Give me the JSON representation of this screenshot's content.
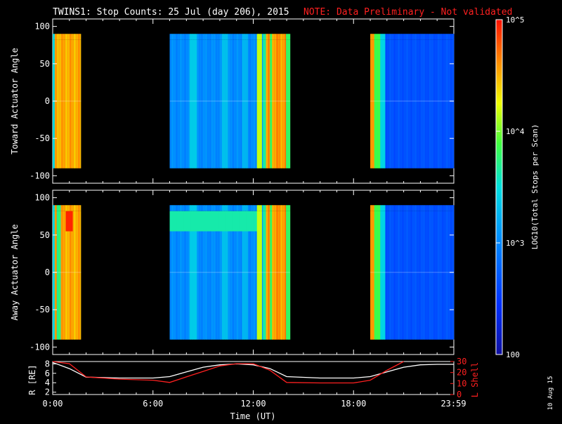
{
  "header": {
    "title": "TWINS1: Stop Counts: 25 Jul (day 206), 2015",
    "note": "NOTE: Data Preliminary - Not validated"
  },
  "footer": {
    "stamp": "10 Aug 15"
  },
  "colorbar": {
    "label": "LOG10(Total Stops per Scan)",
    "ticks": [
      {
        "value": 100,
        "label": "100"
      },
      {
        "value": 1000,
        "label": "10^3"
      },
      {
        "value": 10000,
        "label": "10^4"
      },
      {
        "value": 100000,
        "label": "10^5"
      }
    ],
    "range": [
      100,
      100000
    ],
    "scale": "log"
  },
  "colors": {
    "background": "#000000",
    "note": "#ff2020",
    "r_line": "#ffffff",
    "lshell_line": "#ff2020"
  },
  "chart_data": [
    {
      "type": "heatmap",
      "ylabel": "Toward Actuator Angle",
      "ylim": [
        -110,
        110
      ],
      "yticks": [
        100,
        50,
        0,
        -50,
        -100
      ],
      "ytick_labels": [
        "100",
        "50",
        "0",
        "-50",
        "-100"
      ],
      "xlim": [
        0,
        24
      ],
      "data_segments": [
        {
          "start": 0.0,
          "end": 1.7
        },
        {
          "start": 7.0,
          "end": 14.2
        },
        {
          "start": 19.0,
          "end": 24.0
        }
      ],
      "angle_range": [
        -90,
        90
      ]
    },
    {
      "type": "heatmap",
      "ylabel": "Away Actuator Angle",
      "ylim": [
        -110,
        110
      ],
      "yticks": [
        100,
        50,
        0,
        -50,
        -100
      ],
      "ytick_labels": [
        "100",
        "50",
        "0",
        "-50",
        "-100"
      ],
      "xlim": [
        0,
        24
      ],
      "data_segments": [
        {
          "start": 0.0,
          "end": 1.7
        },
        {
          "start": 7.0,
          "end": 14.2
        },
        {
          "start": 19.0,
          "end": 24.0
        }
      ],
      "angle_range": [
        -90,
        90
      ]
    },
    {
      "type": "line",
      "xlabel": "Time (UT)",
      "ylabel_left": "R [RE]",
      "ylabel_right": "L Shell",
      "xlim": [
        0,
        24
      ],
      "ylim_left": [
        1.5,
        8.5
      ],
      "ylim_right": [
        0,
        30
      ],
      "yticks_left": [
        2,
        4,
        6,
        8
      ],
      "yticks_right": [
        0,
        10,
        20,
        30
      ],
      "xticks": [
        0,
        6,
        12,
        18,
        23.98
      ],
      "xtick_labels": [
        "0:00",
        "6:00",
        "12:00",
        "18:00",
        "23:59"
      ],
      "series": [
        {
          "axis": "left",
          "x": [
            0,
            1,
            2,
            4,
            6,
            7,
            8,
            9,
            10,
            11,
            12,
            13,
            14,
            16,
            18,
            19,
            20,
            21,
            22,
            23,
            24
          ],
          "values": [
            8.3,
            7.0,
            5.2,
            5.0,
            5.0,
            5.3,
            6.3,
            7.3,
            7.8,
            8.0,
            7.8,
            7.0,
            5.3,
            5.0,
            5.0,
            5.3,
            6.3,
            7.3,
            7.8,
            7.9,
            7.9
          ]
        },
        {
          "axis": "right",
          "x": [
            0,
            1,
            2,
            4,
            6,
            7,
            8,
            9,
            10,
            11,
            12,
            13,
            14,
            16,
            18,
            19,
            20,
            21
          ],
          "values": [
            30,
            28,
            16,
            14,
            13,
            11,
            16,
            21,
            26,
            28,
            28,
            22,
            11,
            10.5,
            10.5,
            13,
            22,
            30
          ]
        }
      ]
    }
  ]
}
